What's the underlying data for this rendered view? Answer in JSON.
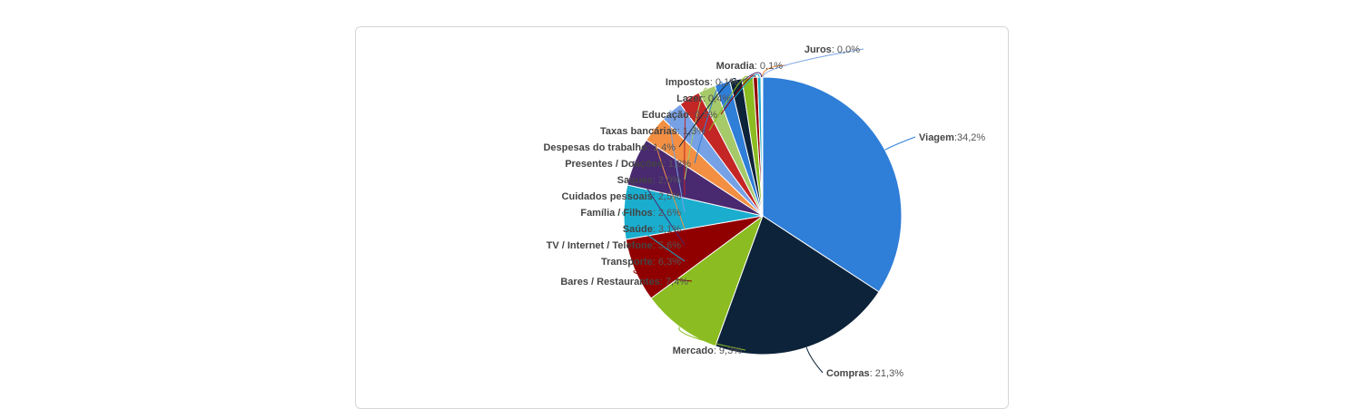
{
  "chart_data": {
    "type": "pie",
    "title": "",
    "categories": [
      "Viagem",
      "Compras",
      "Mercado",
      "Bares / Restaurantes",
      "Transporte",
      "TV / Internet / Telefone",
      "Saúde",
      "Família / Filhos",
      "Cuidados pessoais",
      "Saques",
      "Presentes / Doações",
      "Despesas do trabalho",
      "Taxas bancárias",
      "Educação",
      "Lazer",
      "Impostos",
      "Moradia",
      "Juros"
    ],
    "values": [
      34.2,
      21.3,
      9.3,
      7.4,
      6.3,
      5.6,
      3.1,
      2.6,
      2.5,
      2.0,
      1.8,
      1.4,
      1.3,
      0.5,
      0.4,
      0.1,
      0.1,
      0.0
    ],
    "value_labels": [
      "34,2%",
      "21,3%",
      "9,3%",
      "7,4%",
      "6,3%",
      "5,6%",
      "3,1%",
      "2,6%",
      "2,5%",
      "2,0%",
      "1,8%",
      "1,4%",
      "1,3%",
      "0,5%",
      "0,4%",
      "0,1%",
      "0,1%",
      "0,0%"
    ],
    "colors": [
      "#2f7ed8",
      "#0d233a",
      "#8bbc21",
      "#910000",
      "#1aadce",
      "#492970",
      "#f28f43",
      "#77a1e5",
      "#c42525",
      "#a6c96a",
      "#2f7ed8",
      "#0d233a",
      "#8bbc21",
      "#910000",
      "#1aadce",
      "#492970",
      "#f28f43",
      "#77a1e5"
    ],
    "legend": "none",
    "start_angle": "top, clockwise",
    "labels_blurred": true
  }
}
